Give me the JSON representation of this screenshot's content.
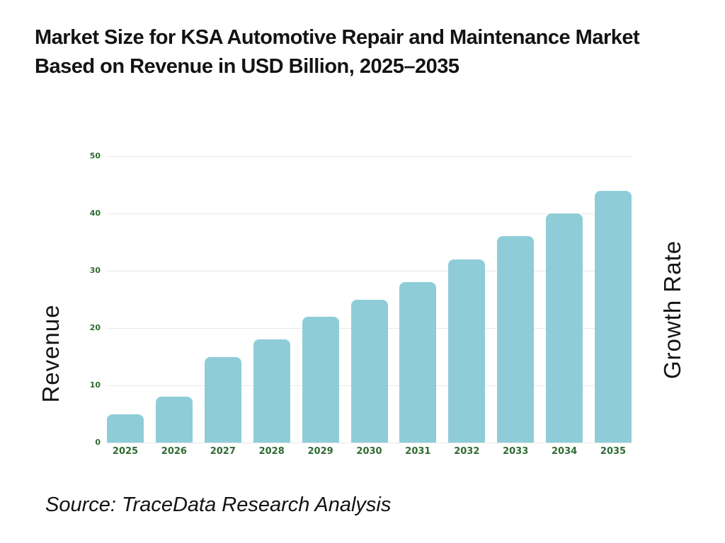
{
  "title": {
    "line1": "Market Size for KSA Automotive Repair and Maintenance Market",
    "line2": "Based on Revenue in USD Billion, 2025–2035"
  },
  "source": "Source: TraceData Research Analysis",
  "chart_data": {
    "type": "bar",
    "title": "Market Size for KSA Automotive Repair and Maintenance Market Based on Revenue in USD Billion, 2025–2035",
    "categories": [
      "2025",
      "2026",
      "2027",
      "2028",
      "2029",
      "2030",
      "2031",
      "2032",
      "2033",
      "2034",
      "2035"
    ],
    "values": [
      5,
      8,
      15,
      18,
      22,
      25,
      28,
      32,
      36,
      40,
      44
    ],
    "xlabel": "",
    "ylabel_left": "Revenue",
    "ylabel_right": "Growth Rate",
    "ylim": [
      0,
      50
    ],
    "yticks": [
      0,
      10,
      20,
      30,
      40,
      50
    ],
    "grid": true,
    "legend": false,
    "bar_color": "#8ecdd8",
    "tick_label_color": "#2e6b31",
    "gridline_color": "#e9e9e9"
  }
}
